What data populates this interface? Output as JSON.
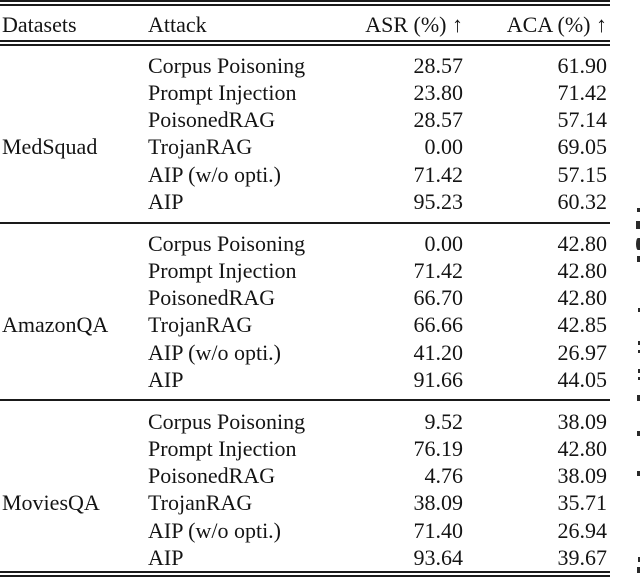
{
  "page": {
    "background": "#ffffff",
    "text_color": "#141414",
    "rule_color": "#1a1a1a"
  },
  "table": {
    "header": {
      "datasets": "Datasets",
      "attack": "Attack",
      "asr": "ASR (%) ↑",
      "aca": "ACA (%) ↑"
    },
    "groups": [
      {
        "dataset": "MedSquad",
        "rows": [
          {
            "attack": "Corpus Poisoning",
            "asr": "28.57",
            "aca": "61.90"
          },
          {
            "attack": "Prompt Injection",
            "asr": "23.80",
            "aca": "71.42"
          },
          {
            "attack": "PoisonedRAG",
            "asr": "28.57",
            "aca": "57.14"
          },
          {
            "attack": "TrojanRAG",
            "asr": "0.00",
            "aca": "69.05"
          },
          {
            "attack": "AIP (w/o opti.)",
            "asr": "71.42",
            "aca": "57.15"
          },
          {
            "attack": "AIP",
            "asr": "95.23",
            "aca": "60.32"
          }
        ]
      },
      {
        "dataset": "AmazonQA",
        "rows": [
          {
            "attack": "Corpus Poisoning",
            "asr": "0.00",
            "aca": "42.80"
          },
          {
            "attack": "Prompt Injection",
            "asr": "71.42",
            "aca": "42.80"
          },
          {
            "attack": "PoisonedRAG",
            "asr": "66.70",
            "aca": "42.80"
          },
          {
            "attack": "TrojanRAG",
            "asr": "66.66",
            "aca": "42.85"
          },
          {
            "attack": "AIP (w/o opti.)",
            "asr": "41.20",
            "aca": "26.97"
          },
          {
            "attack": "AIP",
            "asr": "91.66",
            "aca": "44.05"
          }
        ]
      },
      {
        "dataset": "MoviesQA",
        "rows": [
          {
            "attack": "Corpus Poisoning",
            "asr": "9.52",
            "aca": "38.09"
          },
          {
            "attack": "Prompt Injection",
            "asr": "76.19",
            "aca": "42.80"
          },
          {
            "attack": "PoisonedRAG",
            "asr": "4.76",
            "aca": "38.09"
          },
          {
            "attack": "TrojanRAG",
            "asr": "38.09",
            "aca": "35.71"
          },
          {
            "attack": "AIP (w/o opti.)",
            "asr": "71.40",
            "aca": "26.94"
          },
          {
            "attack": "AIP",
            "asr": "93.64",
            "aca": "39.67"
          }
        ]
      }
    ]
  }
}
